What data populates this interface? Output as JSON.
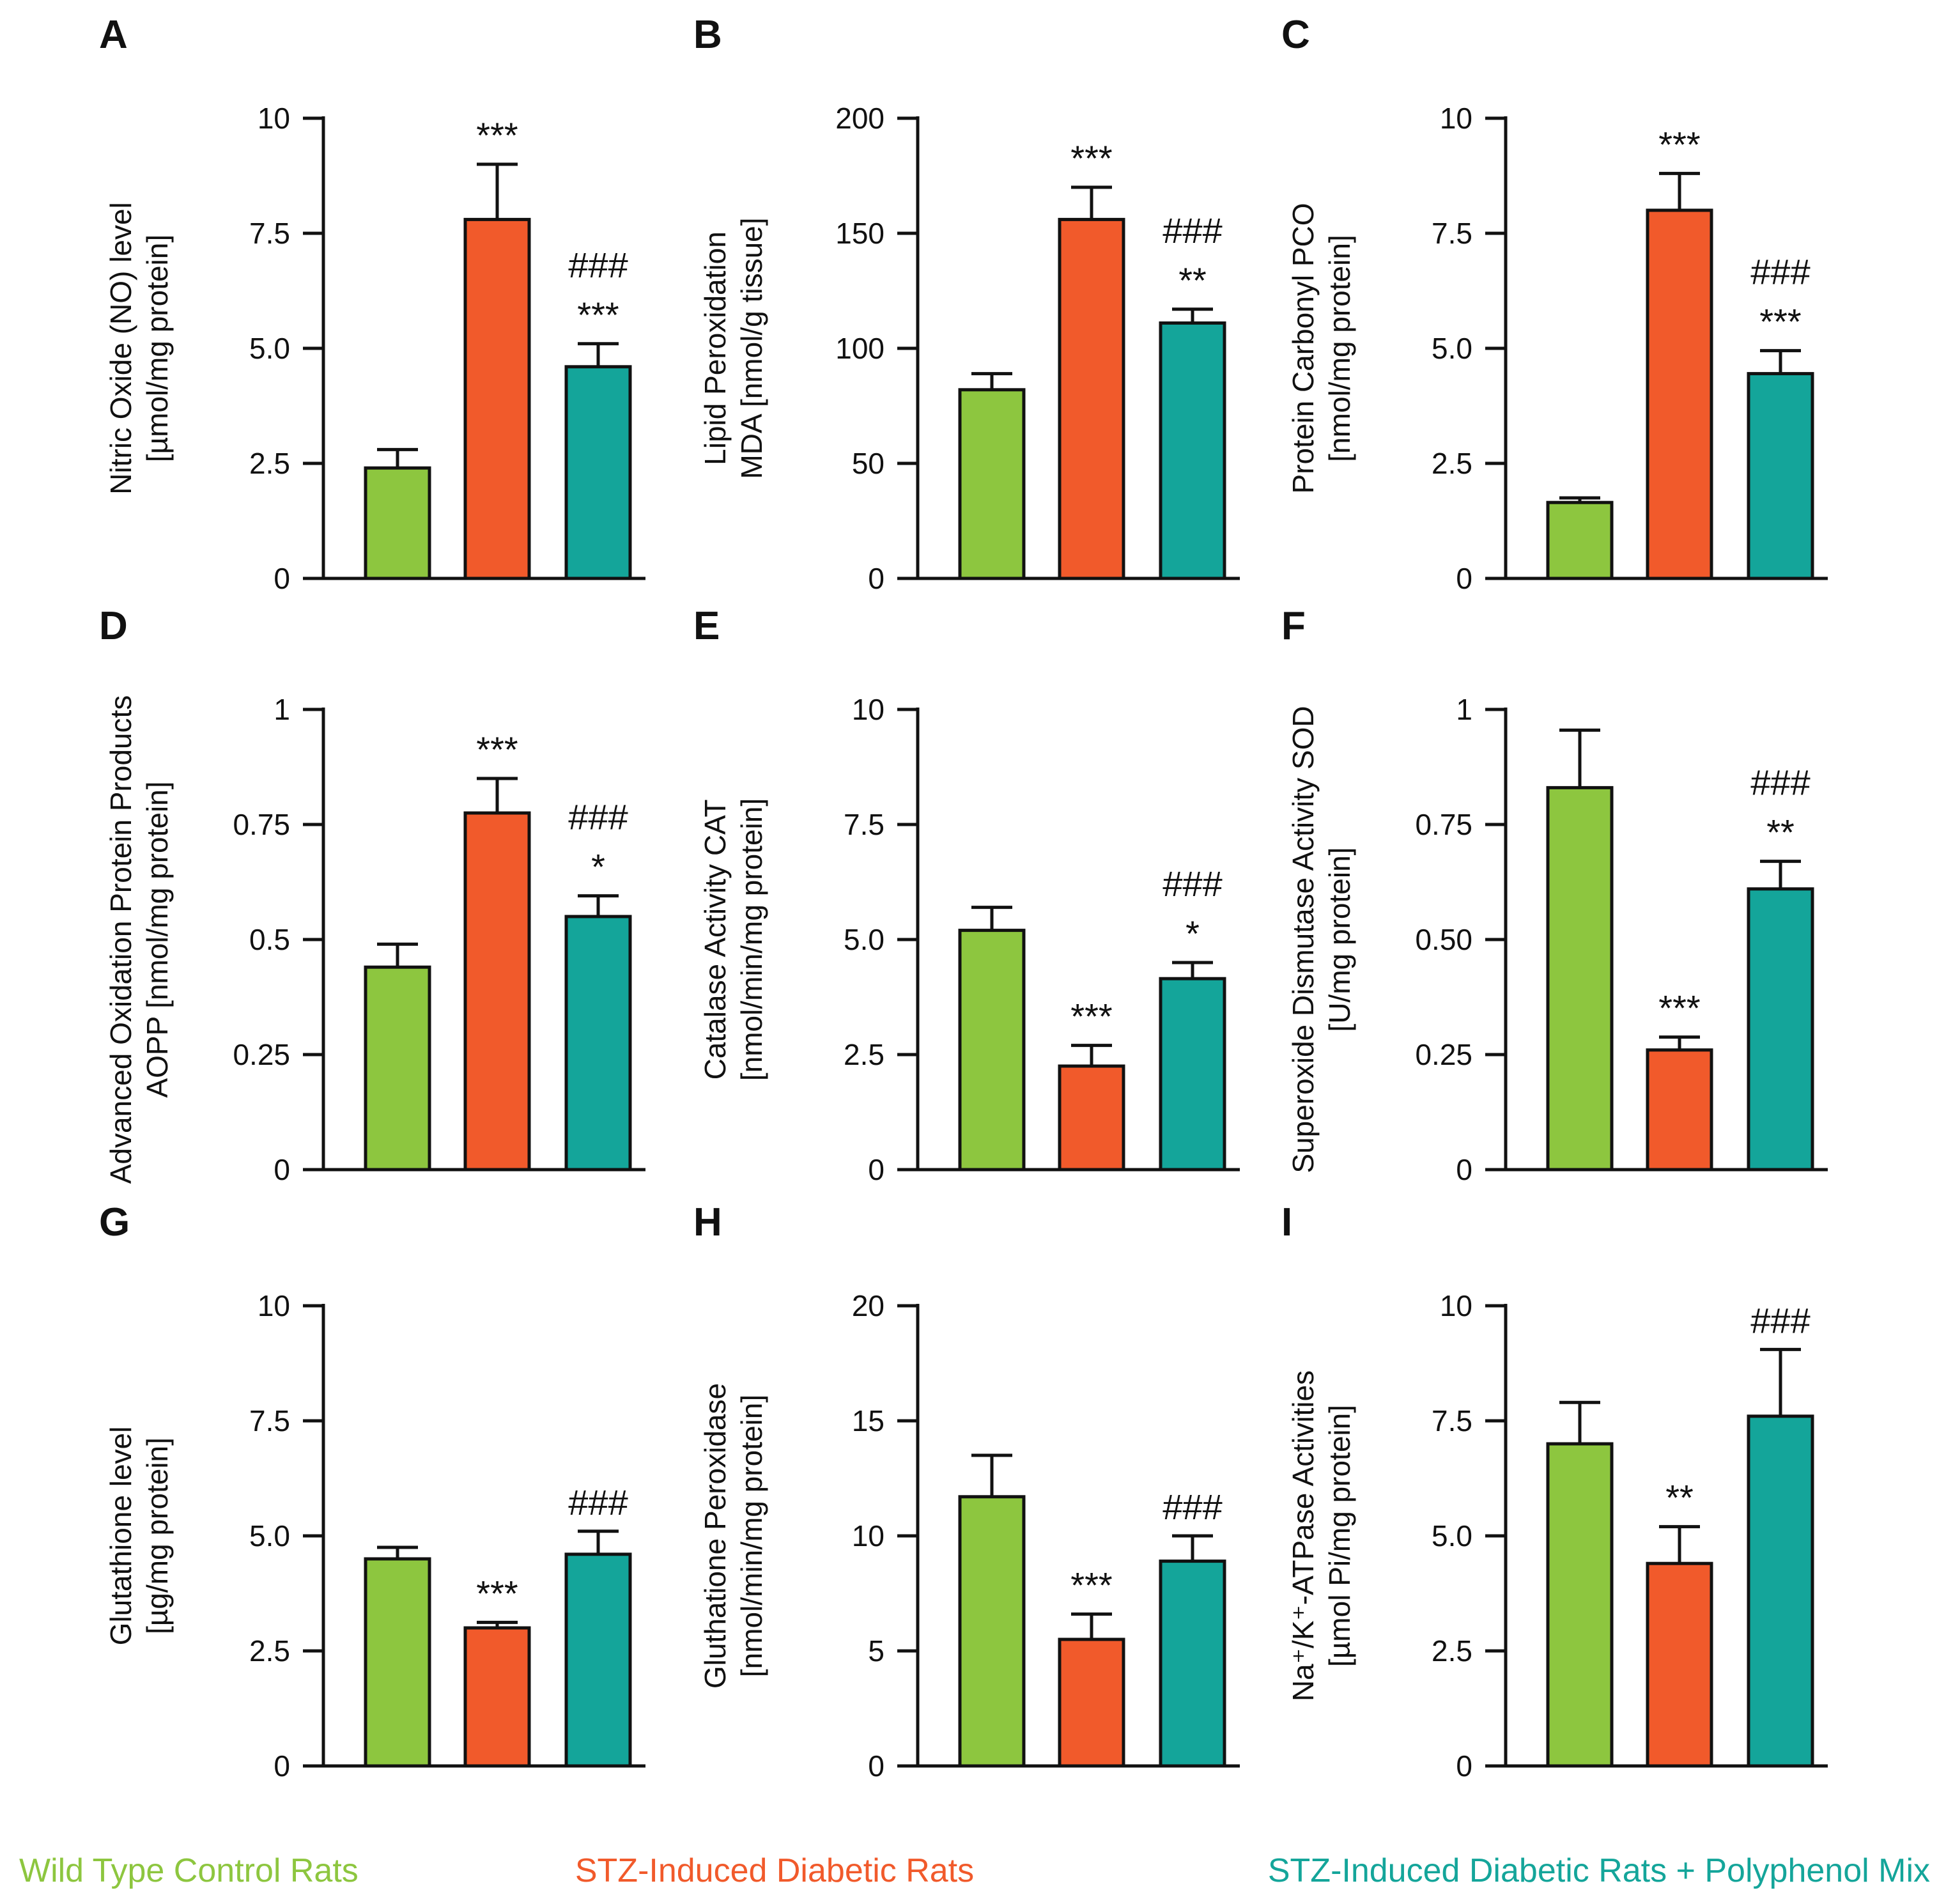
{
  "colors": {
    "control": "#8DC63F",
    "stz": "#F15A2B",
    "mix": "#14A59A",
    "ink": "#111111"
  },
  "legend": [
    {
      "label": "Wild Type Control Rats",
      "color": "#8DC63F"
    },
    {
      "label": "STZ-Induced Diabetic Rats",
      "color": "#F15A2B"
    },
    {
      "label": "STZ-Induced Diabetic Rats + Polyphenol Mix",
      "color": "#14A59A"
    }
  ],
  "chart_data": [
    {
      "panel": "A",
      "type": "bar",
      "categories": [
        "Wild Type Control Rats",
        "STZ-Induced Diabetic Rats",
        "STZ-Induced Diabetic Rats + Polyphenol Mix"
      ],
      "ylabel": [
        "Nitric Oxide (NO) level",
        "[µmol/mg protein]"
      ],
      "ylim": [
        0,
        10
      ],
      "ticks": [
        0,
        2.5,
        5.0,
        7.5,
        10
      ],
      "tick_labels": [
        "0",
        "2.5",
        "5.0",
        "7.5",
        "10"
      ],
      "values": [
        2.4,
        7.8,
        4.6
      ],
      "errors": [
        0.4,
        1.2,
        0.5
      ],
      "annotations": [
        [],
        [
          "***"
        ],
        [
          "###",
          "***"
        ]
      ]
    },
    {
      "panel": "B",
      "type": "bar",
      "categories": [
        "Wild Type Control Rats",
        "STZ-Induced Diabetic Rats",
        "STZ-Induced Diabetic Rats + Polyphenol Mix"
      ],
      "ylabel": [
        "Lipid Peroxidation",
        "MDA [nmol/g tissue]"
      ],
      "ylim": [
        0,
        200
      ],
      "ticks": [
        0,
        50,
        100,
        150,
        200
      ],
      "tick_labels": [
        "0",
        "50",
        "100",
        "150",
        "200"
      ],
      "values": [
        82,
        156,
        111
      ],
      "errors": [
        7,
        14,
        6
      ],
      "annotations": [
        [],
        [
          "***"
        ],
        [
          "###",
          "**"
        ]
      ]
    },
    {
      "panel": "C",
      "type": "bar",
      "categories": [
        "Wild Type Control Rats",
        "STZ-Induced Diabetic Rats",
        "STZ-Induced Diabetic Rats + Polyphenol Mix"
      ],
      "ylabel": [
        "Protein Carbonyl PCO",
        "[nmol/mg protein]"
      ],
      "ylim": [
        0,
        10
      ],
      "ticks": [
        0,
        2.5,
        5.0,
        7.5,
        10
      ],
      "tick_labels": [
        "0",
        "2.5",
        "5.0",
        "7.5",
        "10"
      ],
      "values": [
        1.65,
        8.0,
        4.45
      ],
      "errors": [
        0.1,
        0.8,
        0.5
      ],
      "annotations": [
        [],
        [
          "***"
        ],
        [
          "###",
          "***"
        ]
      ]
    },
    {
      "panel": "D",
      "type": "bar",
      "categories": [
        "Wild Type Control Rats",
        "STZ-Induced Diabetic Rats",
        "STZ-Induced Diabetic Rats + Polyphenol Mix"
      ],
      "ylabel": [
        "Advanced Oxidation Protein Products",
        "AOPP [nmol/mg protein]"
      ],
      "ylim": [
        0,
        1
      ],
      "ticks": [
        0,
        0.25,
        0.5,
        0.75,
        1
      ],
      "tick_labels": [
        "0",
        "0.25",
        "0.5",
        "0.75",
        "1"
      ],
      "values": [
        0.44,
        0.775,
        0.55
      ],
      "errors": [
        0.05,
        0.075,
        0.045
      ],
      "annotations": [
        [],
        [
          "***"
        ],
        [
          "###",
          "*"
        ]
      ]
    },
    {
      "panel": "E",
      "type": "bar",
      "categories": [
        "Wild Type Control Rats",
        "STZ-Induced Diabetic Rats",
        "STZ-Induced Diabetic Rats + Polyphenol Mix"
      ],
      "ylabel": [
        "Catalase Activity CAT",
        "[nmol/min/mg protein]"
      ],
      "ylim": [
        0,
        10
      ],
      "ticks": [
        0,
        2.5,
        5.0,
        7.5,
        10
      ],
      "tick_labels": [
        "0",
        "2.5",
        "5.0",
        "7.5",
        "10"
      ],
      "values": [
        5.2,
        2.25,
        4.15
      ],
      "errors": [
        0.5,
        0.45,
        0.35
      ],
      "annotations": [
        [],
        [
          "***"
        ],
        [
          "###",
          "*"
        ]
      ]
    },
    {
      "panel": "F",
      "type": "bar",
      "categories": [
        "Wild Type Control Rats",
        "STZ-Induced Diabetic Rats",
        "STZ-Induced Diabetic Rats + Polyphenol Mix"
      ],
      "ylabel": [
        "Superoxide Dismutase Activity SOD",
        "[U/mg protein]"
      ],
      "ylim": [
        0,
        1
      ],
      "ticks": [
        0,
        0.25,
        0.5,
        0.75,
        1
      ],
      "tick_labels": [
        "0",
        "0.25",
        "0.50",
        "0.75",
        "1"
      ],
      "values": [
        0.83,
        0.26,
        0.61
      ],
      "errors": [
        0.125,
        0.028,
        0.06
      ],
      "annotations": [
        [],
        [
          "***"
        ],
        [
          "###",
          "**"
        ]
      ]
    },
    {
      "panel": "G",
      "type": "bar",
      "categories": [
        "Wild Type Control Rats",
        "STZ-Induced Diabetic Rats",
        "STZ-Induced Diabetic Rats + Polyphenol Mix"
      ],
      "ylabel": [
        "Glutathione level",
        "[µg/mg protein]"
      ],
      "ylim": [
        0,
        10
      ],
      "ticks": [
        0,
        2.5,
        5.0,
        7.5,
        10
      ],
      "tick_labels": [
        "0",
        "2.5",
        "5.0",
        "7.5",
        "10"
      ],
      "values": [
        4.5,
        3.0,
        4.6
      ],
      "errors": [
        0.25,
        0.12,
        0.5
      ],
      "annotations": [
        [],
        [
          "***"
        ],
        [
          "###"
        ]
      ]
    },
    {
      "panel": "H",
      "type": "bar",
      "categories": [
        "Wild Type Control Rats",
        "STZ-Induced Diabetic Rats",
        "STZ-Induced Diabetic Rats + Polyphenol Mix"
      ],
      "ylabel": [
        "Gluthatione Peroxidase",
        "[nmol/min/mg protein]"
      ],
      "ylim": [
        0,
        20
      ],
      "ticks": [
        0,
        5,
        10,
        15,
        20
      ],
      "tick_labels": [
        "0",
        "5",
        "10",
        "15",
        "20"
      ],
      "values": [
        11.7,
        5.5,
        8.9
      ],
      "errors": [
        1.8,
        1.1,
        1.1
      ],
      "annotations": [
        [],
        [
          "***"
        ],
        [
          "###"
        ]
      ]
    },
    {
      "panel": "I",
      "type": "bar",
      "categories": [
        "Wild Type Control Rats",
        "STZ-Induced Diabetic Rats",
        "STZ-Induced Diabetic Rats + Polyphenol Mix"
      ],
      "ylabel": [
        "Na⁺/K⁺-ATPase Activities",
        "[µmol Pi/mg protein]"
      ],
      "ylim": [
        0,
        10
      ],
      "ticks": [
        0,
        2.5,
        5.0,
        7.5,
        10
      ],
      "tick_labels": [
        "0",
        "2.5",
        "5.0",
        "7.5",
        "10"
      ],
      "values": [
        7.0,
        4.4,
        7.6
      ],
      "errors": [
        0.9,
        0.8,
        1.45
      ],
      "annotations": [
        [],
        [
          "**"
        ],
        [
          "###"
        ]
      ]
    }
  ]
}
